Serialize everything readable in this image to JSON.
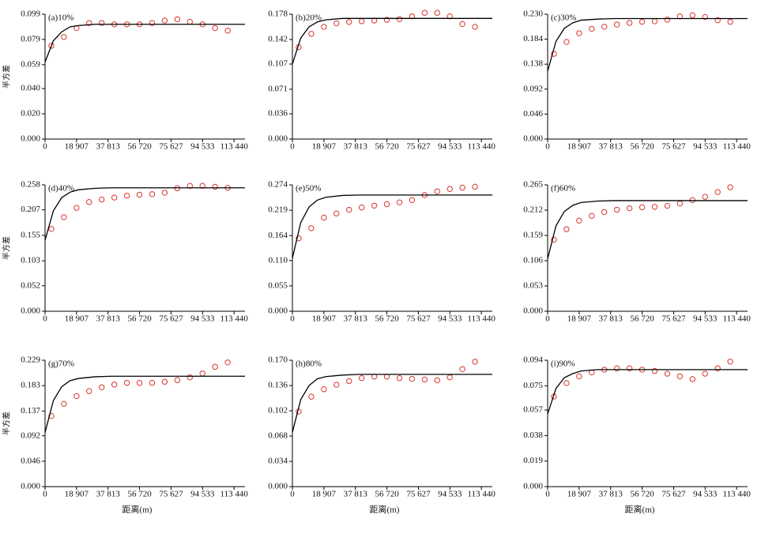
{
  "chart_data": [
    {
      "type": "scatter",
      "title": "(a)10%",
      "ylabel": "半方差",
      "xlim": [
        0,
        120000
      ],
      "ylim": [
        0,
        0.099
      ],
      "xticks": [
        0,
        {
          "value": 18907,
          "label": "18 907"
        },
        {
          "value": 37813,
          "label": "37 813"
        },
        {
          "value": 56720,
          "label": "56 720"
        },
        {
          "value": 75627,
          "label": "75 627"
        },
        {
          "value": 94533,
          "label": "94 533"
        },
        {
          "value": 113440,
          "label": "113 440"
        }
      ],
      "yticks": [
        {
          "value": 0,
          "label": "0.000"
        },
        {
          "value": 0.02,
          "label": "0.020"
        },
        {
          "value": 0.04,
          "label": "0.040"
        },
        0.059,
        0.079,
        0.099
      ],
      "series": [
        {
          "type": "scatter",
          "color": "#d9362f",
          "x": [
            3780,
            11340,
            18900,
            26460,
            34020,
            41580,
            49140,
            56700,
            64260,
            71820,
            79380,
            86940,
            94500,
            102060,
            109620
          ],
          "values": [
            0.074,
            0.081,
            0.088,
            0.092,
            0.092,
            0.091,
            0.091,
            0.091,
            0.092,
            0.094,
            0.095,
            0.093,
            0.091,
            0.088,
            0.086
          ]
        },
        {
          "type": "line",
          "color": "#000000",
          "x": [
            0,
            5000,
            10000,
            15000,
            20000,
            30000,
            40000,
            60000,
            80000,
            100000,
            120000
          ],
          "values": [
            0.061,
            0.078,
            0.085,
            0.089,
            0.09,
            0.091,
            0.091,
            0.091,
            0.091,
            0.091,
            0.091
          ]
        }
      ]
    },
    {
      "type": "scatter",
      "title": "(b)20%",
      "xlim": [
        0,
        120000
      ],
      "ylim": [
        0,
        0.178
      ],
      "xticks": [
        0,
        {
          "value": 18907,
          "label": "18 907"
        },
        {
          "value": 37813,
          "label": "37 813"
        },
        {
          "value": 56720,
          "label": "56 720"
        },
        {
          "value": 75627,
          "label": "75 627"
        },
        {
          "value": 94533,
          "label": "94 533"
        },
        {
          "value": 113440,
          "label": "113 440"
        }
      ],
      "yticks": [
        {
          "value": 0,
          "label": "0.000"
        },
        0.036,
        0.071,
        0.107,
        0.142,
        0.178
      ],
      "series": [
        {
          "type": "scatter",
          "color": "#d9362f",
          "x": [
            3780,
            11340,
            18900,
            26460,
            34020,
            41580,
            49140,
            56700,
            64260,
            71820,
            79380,
            86940,
            94500,
            102060,
            109620
          ],
          "values": [
            0.131,
            0.15,
            0.16,
            0.165,
            0.167,
            0.168,
            0.169,
            0.17,
            0.171,
            0.175,
            0.18,
            0.18,
            0.175,
            0.164,
            0.16
          ]
        },
        {
          "type": "line",
          "color": "#000000",
          "x": [
            0,
            5000,
            10000,
            15000,
            20000,
            30000,
            40000,
            60000,
            80000,
            100000,
            120000
          ],
          "values": [
            0.107,
            0.144,
            0.16,
            0.167,
            0.17,
            0.172,
            0.172,
            0.172,
            0.172,
            0.172,
            0.172
          ]
        }
      ]
    },
    {
      "type": "scatter",
      "title": "(c)30%",
      "xlim": [
        0,
        120000
      ],
      "ylim": [
        0,
        0.23
      ],
      "xticks": [
        0,
        {
          "value": 18907,
          "label": "18 907"
        },
        {
          "value": 37813,
          "label": "37 813"
        },
        {
          "value": 56720,
          "label": "56 720"
        },
        {
          "value": 75627,
          "label": "75 627"
        },
        {
          "value": 94533,
          "label": "94 533"
        },
        {
          "value": 113440,
          "label": "113 440"
        }
      ],
      "yticks": [
        {
          "value": 0,
          "label": "0.000"
        },
        0.046,
        0.092,
        0.138,
        0.184,
        {
          "value": 0.23,
          "label": "0.230"
        }
      ],
      "series": [
        {
          "type": "scatter",
          "color": "#d9362f",
          "x": [
            3780,
            11340,
            18900,
            26460,
            34020,
            41580,
            49140,
            56700,
            64260,
            71820,
            79380,
            86940,
            94500,
            102060,
            109620
          ],
          "values": [
            0.157,
            0.179,
            0.195,
            0.203,
            0.207,
            0.211,
            0.214,
            0.216,
            0.217,
            0.22,
            0.226,
            0.228,
            0.225,
            0.219,
            0.216
          ]
        },
        {
          "type": "line",
          "color": "#000000",
          "x": [
            0,
            5000,
            10000,
            15000,
            20000,
            30000,
            40000,
            60000,
            80000,
            100000,
            120000
          ],
          "values": [
            0.125,
            0.18,
            0.204,
            0.214,
            0.219,
            0.221,
            0.222,
            0.222,
            0.222,
            0.222,
            0.222
          ]
        }
      ]
    },
    {
      "type": "scatter",
      "title": "(d)40%",
      "ylabel": "半方差",
      "xlim": [
        0,
        120000
      ],
      "ylim": [
        0,
        0.258
      ],
      "xticks": [
        0,
        {
          "value": 18907,
          "label": "18 907"
        },
        {
          "value": 37813,
          "label": "37 813"
        },
        {
          "value": 56720,
          "label": "56 720"
        },
        {
          "value": 75627,
          "label": "75 627"
        },
        {
          "value": 94533,
          "label": "94 533"
        },
        {
          "value": 113440,
          "label": "113 440"
        }
      ],
      "yticks": [
        {
          "value": 0,
          "label": "0.000"
        },
        0.052,
        0.103,
        0.155,
        0.207,
        0.258
      ],
      "series": [
        {
          "type": "scatter",
          "color": "#d9362f",
          "x": [
            3780,
            11340,
            18900,
            26460,
            34020,
            41580,
            49140,
            56700,
            64260,
            71820,
            79380,
            86940,
            94500,
            102060,
            109620
          ],
          "values": [
            0.168,
            0.192,
            0.211,
            0.223,
            0.228,
            0.232,
            0.236,
            0.238,
            0.239,
            0.242,
            0.251,
            0.256,
            0.256,
            0.254,
            0.252
          ]
        },
        {
          "type": "line",
          "color": "#000000",
          "x": [
            0,
            5000,
            10000,
            15000,
            20000,
            30000,
            40000,
            60000,
            80000,
            100000,
            120000
          ],
          "values": [
            0.145,
            0.205,
            0.232,
            0.243,
            0.248,
            0.251,
            0.252,
            0.252,
            0.252,
            0.252,
            0.252
          ]
        }
      ]
    },
    {
      "type": "scatter",
      "title": "(e)50%",
      "xlim": [
        0,
        120000
      ],
      "ylim": [
        0,
        0.274
      ],
      "xticks": [
        0,
        {
          "value": 18907,
          "label": "18 907"
        },
        {
          "value": 37813,
          "label": "37 813"
        },
        {
          "value": 56720,
          "label": "56 720"
        },
        {
          "value": 75627,
          "label": "75 627"
        },
        {
          "value": 94533,
          "label": "94 533"
        },
        {
          "value": 113440,
          "label": "113 440"
        }
      ],
      "yticks": [
        {
          "value": 0,
          "label": "0.000"
        },
        0.055,
        {
          "value": 0.11,
          "label": "0.110"
        },
        0.164,
        0.219,
        0.274
      ],
      "series": [
        {
          "type": "scatter",
          "color": "#d9362f",
          "x": [
            3780,
            11340,
            18900,
            26460,
            34020,
            41580,
            49140,
            56700,
            64260,
            71820,
            79380,
            86940,
            94500,
            102060,
            109620
          ],
          "values": [
            0.158,
            0.18,
            0.203,
            0.212,
            0.22,
            0.225,
            0.229,
            0.232,
            0.236,
            0.241,
            0.252,
            0.26,
            0.265,
            0.268,
            0.27
          ]
        },
        {
          "type": "line",
          "color": "#000000",
          "x": [
            0,
            5000,
            10000,
            15000,
            20000,
            30000,
            40000,
            60000,
            80000,
            100000,
            120000
          ],
          "values": [
            0.115,
            0.192,
            0.226,
            0.241,
            0.247,
            0.251,
            0.252,
            0.252,
            0.252,
            0.252,
            0.252
          ]
        }
      ]
    },
    {
      "type": "scatter",
      "title": "(f)60%",
      "xlim": [
        0,
        120000
      ],
      "ylim": [
        0,
        0.265
      ],
      "xticks": [
        0,
        {
          "value": 18907,
          "label": "18 907"
        },
        {
          "value": 37813,
          "label": "37 813"
        },
        {
          "value": 56720,
          "label": "56 720"
        },
        {
          "value": 75627,
          "label": "75 627"
        },
        {
          "value": 94533,
          "label": "94 533"
        },
        {
          "value": 113440,
          "label": "113 440"
        }
      ],
      "yticks": [
        {
          "value": 0,
          "label": "0.000"
        },
        0.053,
        0.106,
        0.159,
        0.212,
        0.265
      ],
      "series": [
        {
          "type": "scatter",
          "color": "#d9362f",
          "x": [
            3780,
            11340,
            18900,
            26460,
            34020,
            41580,
            49140,
            56700,
            64260,
            71820,
            79380,
            86940,
            94500,
            102060,
            109620
          ],
          "values": [
            0.15,
            0.172,
            0.19,
            0.2,
            0.208,
            0.213,
            0.216,
            0.218,
            0.219,
            0.221,
            0.226,
            0.233,
            0.24,
            0.25,
            0.26
          ]
        },
        {
          "type": "line",
          "color": "#000000",
          "x": [
            0,
            5000,
            10000,
            15000,
            20000,
            30000,
            40000,
            60000,
            80000,
            100000,
            120000
          ],
          "values": [
            0.11,
            0.179,
            0.209,
            0.222,
            0.228,
            0.231,
            0.232,
            0.232,
            0.232,
            0.232,
            0.232
          ]
        }
      ]
    },
    {
      "type": "scatter",
      "title": "(g)70%",
      "ylabel": "半方差",
      "xlabel": "距离(m)",
      "xlim": [
        0,
        120000
      ],
      "ylim": [
        0,
        0.229
      ],
      "xticks": [
        0,
        {
          "value": 18907,
          "label": "18 907"
        },
        {
          "value": 37813,
          "label": "37 813"
        },
        {
          "value": 56720,
          "label": "56 720"
        },
        {
          "value": 75627,
          "label": "75 627"
        },
        {
          "value": 94533,
          "label": "94 533"
        },
        {
          "value": 113440,
          "label": "113 440"
        }
      ],
      "yticks": [
        {
          "value": 0,
          "label": "0.000"
        },
        0.046,
        0.092,
        0.137,
        0.183,
        0.229
      ],
      "series": [
        {
          "type": "scatter",
          "color": "#d9362f",
          "x": [
            3780,
            11340,
            18900,
            26460,
            34020,
            41580,
            49140,
            56700,
            64260,
            71820,
            79380,
            86940,
            94500,
            102060,
            109620
          ],
          "values": [
            0.128,
            0.15,
            0.164,
            0.173,
            0.18,
            0.185,
            0.188,
            0.188,
            0.188,
            0.19,
            0.193,
            0.198,
            0.205,
            0.217,
            0.225
          ]
        },
        {
          "type": "line",
          "color": "#000000",
          "x": [
            0,
            5000,
            10000,
            15000,
            20000,
            30000,
            40000,
            60000,
            80000,
            100000,
            120000
          ],
          "values": [
            0.098,
            0.156,
            0.181,
            0.192,
            0.196,
            0.199,
            0.2,
            0.2,
            0.2,
            0.2,
            0.2
          ]
        }
      ]
    },
    {
      "type": "scatter",
      "title": "(h)80%",
      "xlabel": "距离(m)",
      "xlim": [
        0,
        120000
      ],
      "ylim": [
        0,
        0.17
      ],
      "xticks": [
        0,
        {
          "value": 18907,
          "label": "18 907"
        },
        {
          "value": 37813,
          "label": "37 813"
        },
        {
          "value": 56720,
          "label": "56 720"
        },
        {
          "value": 75627,
          "label": "75 627"
        },
        {
          "value": 94533,
          "label": "94 533"
        },
        {
          "value": 113440,
          "label": "113 440"
        }
      ],
      "yticks": [
        {
          "value": 0,
          "label": "0.000"
        },
        0.034,
        0.068,
        0.102,
        0.136,
        {
          "value": 0.17,
          "label": "0.170"
        }
      ],
      "series": [
        {
          "type": "scatter",
          "color": "#d9362f",
          "x": [
            3780,
            11340,
            18900,
            26460,
            34020,
            41580,
            49140,
            56700,
            64260,
            71820,
            79380,
            86940,
            94500,
            102060,
            109620
          ],
          "values": [
            0.101,
            0.121,
            0.131,
            0.137,
            0.142,
            0.146,
            0.148,
            0.148,
            0.146,
            0.145,
            0.144,
            0.143,
            0.147,
            0.158,
            0.168
          ]
        },
        {
          "type": "line",
          "color": "#000000",
          "x": [
            0,
            5000,
            10000,
            15000,
            20000,
            30000,
            40000,
            60000,
            80000,
            100000,
            120000
          ],
          "values": [
            0.073,
            0.117,
            0.136,
            0.145,
            0.148,
            0.15,
            0.151,
            0.151,
            0.151,
            0.151,
            0.151
          ]
        }
      ]
    },
    {
      "type": "scatter",
      "title": "(i)90%",
      "xlabel": "距离(m)",
      "xlim": [
        0,
        120000
      ],
      "ylim": [
        0,
        0.094
      ],
      "xticks": [
        0,
        {
          "value": 18907,
          "label": "18 907"
        },
        {
          "value": 37813,
          "label": "37 813"
        },
        {
          "value": 56720,
          "label": "56 720"
        },
        {
          "value": 75627,
          "label": "75 627"
        },
        {
          "value": 94533,
          "label": "94 533"
        },
        {
          "value": 113440,
          "label": "113 440"
        }
      ],
      "yticks": [
        {
          "value": 0,
          "label": "0.000"
        },
        0.019,
        0.038,
        0.057,
        0.075,
        0.094
      ],
      "series": [
        {
          "type": "scatter",
          "color": "#d9362f",
          "x": [
            3780,
            11340,
            18900,
            26460,
            34020,
            41580,
            49140,
            56700,
            64260,
            71820,
            79380,
            86940,
            94500,
            102060,
            109620
          ],
          "values": [
            0.067,
            0.077,
            0.082,
            0.085,
            0.087,
            0.088,
            0.088,
            0.087,
            0.086,
            0.084,
            0.082,
            0.08,
            0.084,
            0.088,
            0.093
          ]
        },
        {
          "type": "line",
          "color": "#000000",
          "x": [
            0,
            5000,
            10000,
            15000,
            20000,
            30000,
            40000,
            60000,
            80000,
            100000,
            120000
          ],
          "values": [
            0.054,
            0.073,
            0.081,
            0.084,
            0.086,
            0.087,
            0.087,
            0.087,
            0.087,
            0.087,
            0.087
          ]
        }
      ]
    }
  ]
}
